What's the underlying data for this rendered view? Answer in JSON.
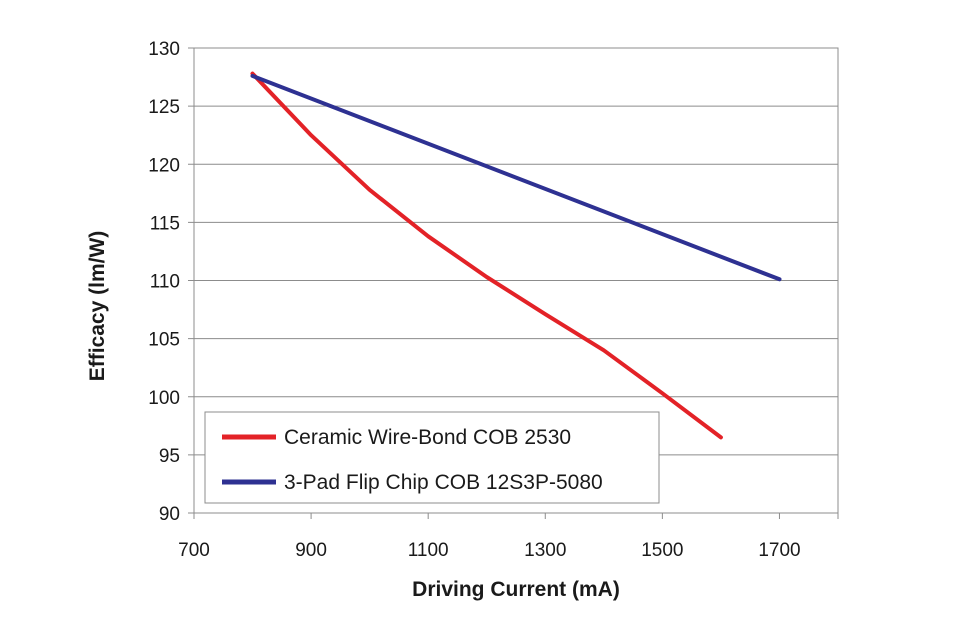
{
  "chart_data": {
    "type": "line",
    "xlabel": "Driving Current (mA)",
    "ylabel": "Efficacy (lm/W)",
    "xlim": [
      700,
      1800
    ],
    "ylim": [
      90,
      130
    ],
    "x_ticks": [
      700,
      900,
      1100,
      1300,
      1500,
      1700
    ],
    "y_ticks": [
      90,
      95,
      100,
      105,
      110,
      115,
      120,
      125,
      130
    ],
    "grid": "horizontal",
    "legend_position": "bottom-left",
    "series": [
      {
        "name": "Ceramic Wire-Bond COB 2530",
        "color": "#e32227",
        "x": [
          800,
          900,
          1000,
          1100,
          1200,
          1300,
          1400,
          1500,
          1600
        ],
        "y": [
          127.8,
          122.5,
          117.8,
          113.8,
          110.3,
          107.1,
          104.0,
          100.3,
          96.5
        ]
      },
      {
        "name": "3-Pad Flip Chip COB 12S3P-5080",
        "color": "#2e3192",
        "x": [
          800,
          1700
        ],
        "y": [
          127.6,
          110.1
        ]
      }
    ]
  }
}
